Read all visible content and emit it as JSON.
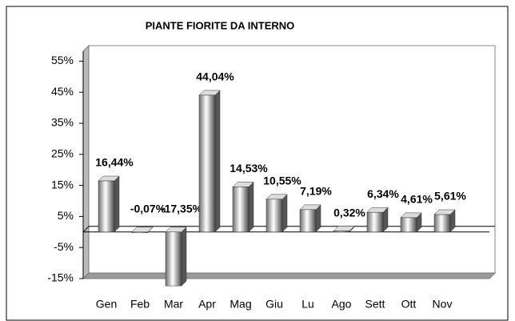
{
  "chart_data": {
    "type": "bar",
    "title": "PIANTE FIORITE DA INTERNO",
    "categories": [
      "Gen",
      "Feb",
      "Mar",
      "Apr",
      "Mag",
      "Giu",
      "Lu",
      "Ago",
      "Sett",
      "Ott",
      "Nov"
    ],
    "values": [
      16.44,
      -0.07,
      -17.35,
      44.04,
      14.53,
      10.55,
      7.19,
      0.32,
      6.34,
      4.61,
      5.61
    ],
    "value_labels": [
      "16,44%",
      "-0,07%",
      "-17,35%",
      "44,04%",
      "14,53%",
      "10,55%",
      "7,19%",
      "0,32%",
      "6,34%",
      "4,61%",
      "5,61%"
    ],
    "color": "#a0a0a0",
    "ylim": [
      -15,
      60
    ],
    "yticks": [
      {
        "value": -15,
        "label": "-15%"
      },
      {
        "value": -5,
        "label": "-5%"
      },
      {
        "value": 5,
        "label": "5%"
      },
      {
        "value": 15,
        "label": "15%"
      },
      {
        "value": 25,
        "label": "25%"
      },
      {
        "value": 35,
        "label": "35%"
      },
      {
        "value": 45,
        "label": "45%"
      },
      {
        "value": 55,
        "label": "55%"
      }
    ],
    "grid": false
  }
}
